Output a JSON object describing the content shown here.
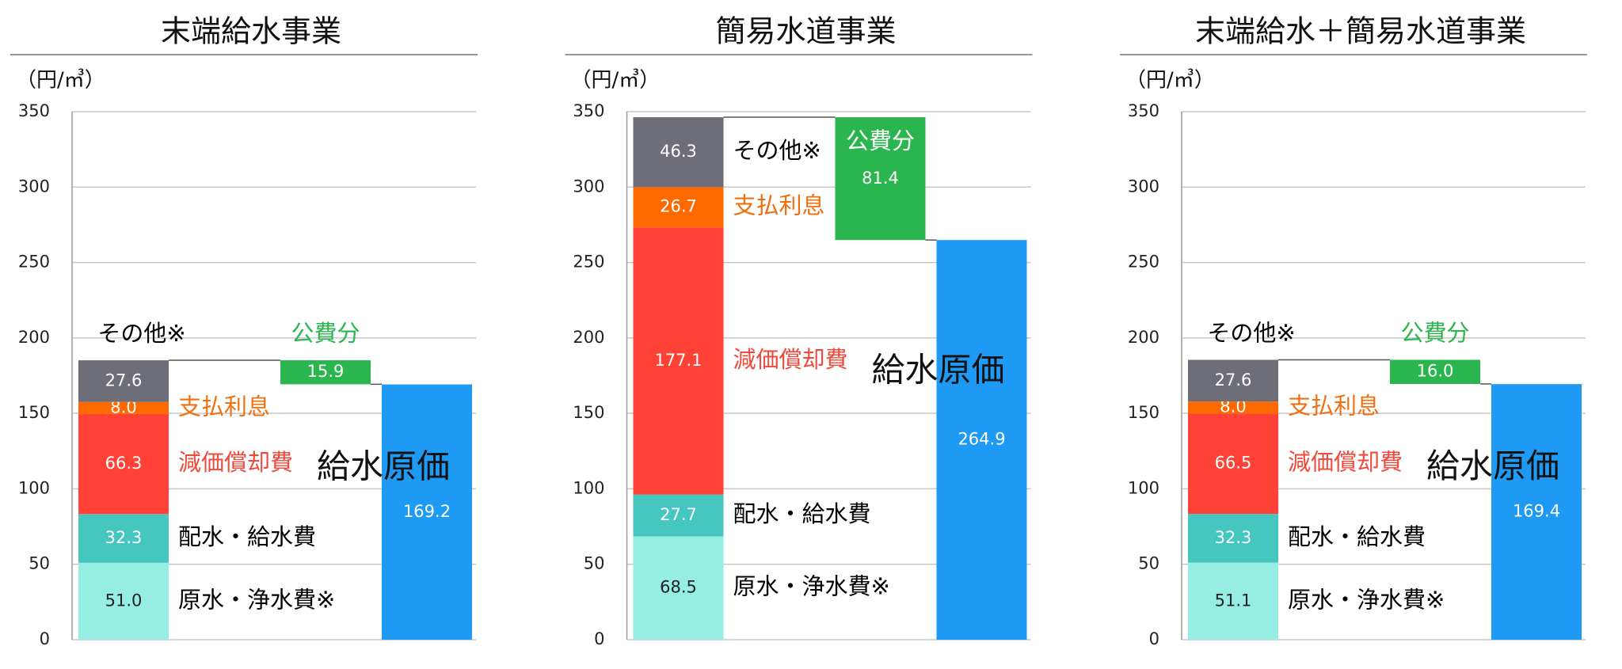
{
  "chart_data": [
    {
      "type": "waterfall",
      "title": "末端給水事業",
      "y_label": "（円/㎥）",
      "ylim": [
        0,
        350
      ],
      "yticks": [
        0,
        50,
        100,
        150,
        200,
        250,
        300,
        350
      ],
      "grid": true,
      "segments": [
        {
          "name": "原水・浄水費※",
          "value": 51.0,
          "value_label": "51.0",
          "color": "#96ede4",
          "label_color": "#000000"
        },
        {
          "name": "配水・給水費",
          "value": 32.3,
          "value_label": "32.3",
          "color": "#45c7c0",
          "label_color": "#000000"
        },
        {
          "name": "減価償却費",
          "value": 66.3,
          "value_label": "66.3",
          "color": "#ff4136",
          "label_color": "#f04a3c"
        },
        {
          "name": "支払利息",
          "value": 8.0,
          "value_label": "8.0",
          "color": "#ff6a00",
          "label_color": "#f07010"
        },
        {
          "name": "その他※",
          "value": 27.6,
          "value_label": "27.6",
          "color": "#6d6e78",
          "label_color": "#000000"
        }
      ],
      "subsidy": {
        "name": "公費分",
        "value": 15.9,
        "value_label": "15.9",
        "color": "#2bb54f",
        "label_color": "#2bb54f"
      },
      "total": {
        "name": "給水原価",
        "value": 169.2,
        "value_label": "169.2",
        "color": "#1e9af5"
      }
    },
    {
      "type": "waterfall",
      "title": "簡易水道事業",
      "y_label": "（円/㎥）",
      "ylim": [
        0,
        350
      ],
      "yticks": [
        0,
        50,
        100,
        150,
        200,
        250,
        300,
        350
      ],
      "grid": true,
      "segments": [
        {
          "name": "原水・浄水費※",
          "value": 68.5,
          "value_label": "68.5",
          "color": "#96ede4",
          "label_color": "#000000"
        },
        {
          "name": "配水・給水費",
          "value": 27.7,
          "value_label": "27.7",
          "color": "#45c7c0",
          "label_color": "#000000"
        },
        {
          "name": "減価償却費",
          "value": 177.1,
          "value_label": "177.1",
          "color": "#ff4136",
          "label_color": "#f04a3c"
        },
        {
          "name": "支払利息",
          "value": 26.7,
          "value_label": "26.7",
          "color": "#ff6a00",
          "label_color": "#f07010"
        },
        {
          "name": "その他※",
          "value": 46.3,
          "value_label": "46.3",
          "color": "#6d6e78",
          "label_color": "#000000"
        }
      ],
      "subsidy": {
        "name": "公費分",
        "value": 81.4,
        "value_label": "81.4",
        "color": "#2bb54f",
        "label_color": "#2bb54f"
      },
      "total": {
        "name": "給水原価",
        "value": 264.9,
        "value_label": "264.9",
        "color": "#1e9af5"
      }
    },
    {
      "type": "waterfall",
      "title": "末端給水＋簡易水道事業",
      "y_label": "（円/㎥）",
      "ylim": [
        0,
        350
      ],
      "yticks": [
        0,
        50,
        100,
        150,
        200,
        250,
        300,
        350
      ],
      "grid": true,
      "segments": [
        {
          "name": "原水・浄水費※",
          "value": 51.1,
          "value_label": "51.1",
          "color": "#96ede4",
          "label_color": "#000000"
        },
        {
          "name": "配水・給水費",
          "value": 32.3,
          "value_label": "32.3",
          "color": "#45c7c0",
          "label_color": "#000000"
        },
        {
          "name": "減価償却費",
          "value": 66.5,
          "value_label": "66.5",
          "color": "#ff4136",
          "label_color": "#f04a3c"
        },
        {
          "name": "支払利息",
          "value": 8.0,
          "value_label": "8.0",
          "color": "#ff6a00",
          "label_color": "#f07010"
        },
        {
          "name": "その他※",
          "value": 27.6,
          "value_label": "27.6",
          "color": "#6d6e78",
          "label_color": "#000000"
        }
      ],
      "subsidy": {
        "name": "公費分",
        "value": 16.0,
        "value_label": "16.0",
        "color": "#2bb54f",
        "label_color": "#2bb54f"
      },
      "total": {
        "name": "給水原価",
        "value": 169.4,
        "value_label": "169.4",
        "color": "#1e9af5"
      }
    }
  ]
}
